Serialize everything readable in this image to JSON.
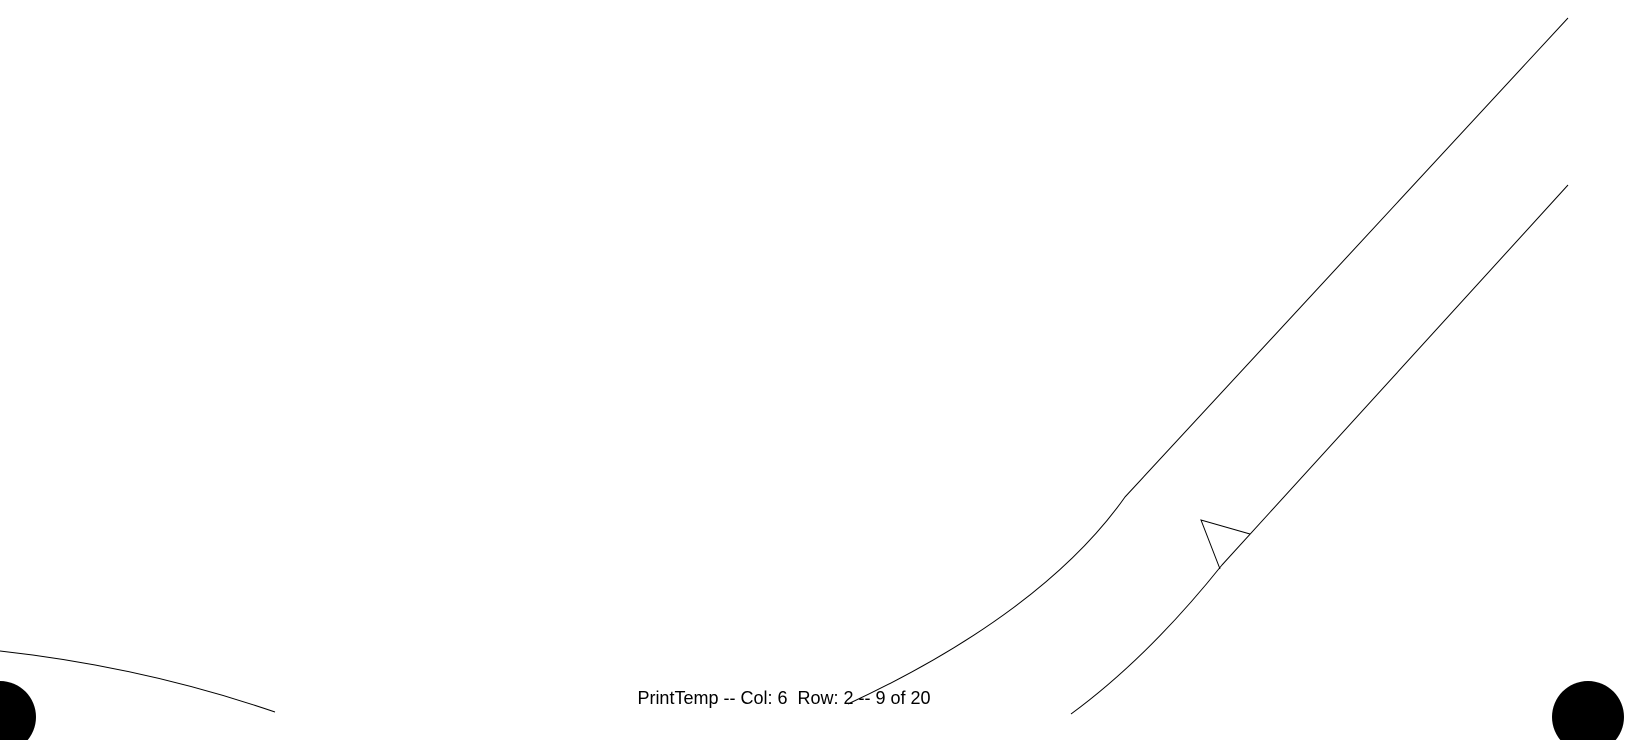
{
  "page": {
    "footer_text": "PrintTemp -- Col: 6  Row: 2 -- 9 of 20"
  },
  "colors": {
    "background": "#ffffff",
    "line": "#000000"
  }
}
